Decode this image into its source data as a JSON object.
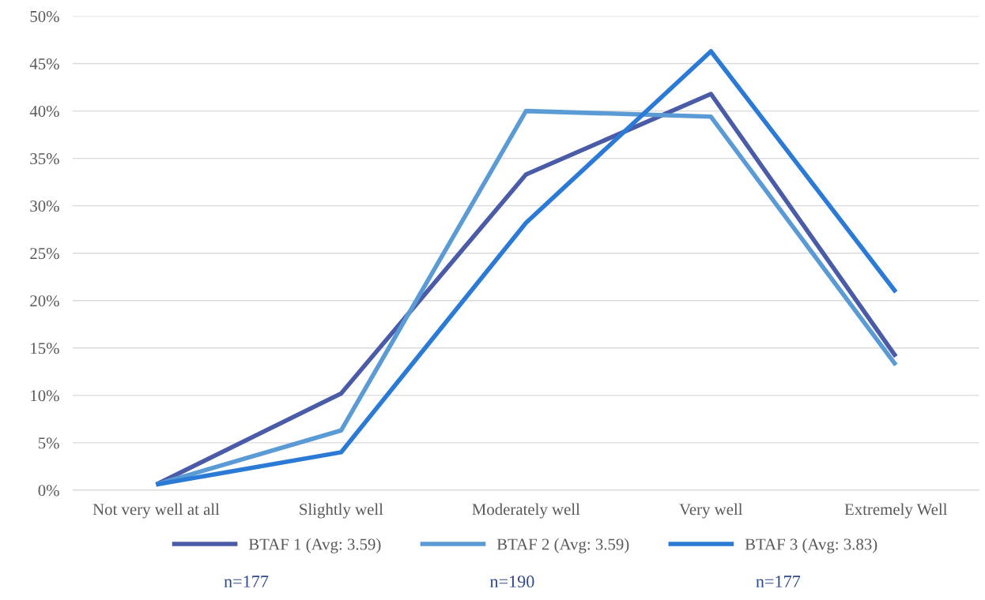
{
  "chart_data": {
    "type": "line",
    "categories": [
      "Not very well at all",
      "Slightly well",
      "Moderately well",
      "Very well",
      "Extremely Well"
    ],
    "series": [
      {
        "name": "BTAF 1 (Avg: 3.59)",
        "color": "#4a5ba8",
        "values": [
          0.6,
          10.2,
          33.3,
          41.8,
          14.1
        ]
      },
      {
        "name": "BTAF 2 (Avg: 3.59)",
        "color": "#5b9bd5",
        "values": [
          0.6,
          6.3,
          40.0,
          39.4,
          13.2
        ]
      },
      {
        "name": "BTAF 3 (Avg: 3.83)",
        "color": "#2a7ad6",
        "values": [
          0.6,
          4.0,
          28.2,
          46.3,
          20.9
        ]
      }
    ],
    "ylim": [
      0,
      50
    ],
    "yticks": [
      {
        "value": 0,
        "label": "0%"
      },
      {
        "value": 5,
        "label": "5%"
      },
      {
        "value": 10,
        "label": "10%"
      },
      {
        "value": 15,
        "label": "15%"
      },
      {
        "value": 20,
        "label": "20%"
      },
      {
        "value": 25,
        "label": "25%"
      },
      {
        "value": 30,
        "label": "30%"
      },
      {
        "value": 35,
        "label": "35%"
      },
      {
        "value": 40,
        "label": "40%"
      },
      {
        "value": 45,
        "label": "45%"
      },
      {
        "value": 50,
        "label": "50%"
      }
    ],
    "grid": "y",
    "legend": "bottom",
    "marker": "none",
    "line_style": "solid",
    "annotations": [
      "n=177",
      "n=190",
      "n=177"
    ]
  }
}
